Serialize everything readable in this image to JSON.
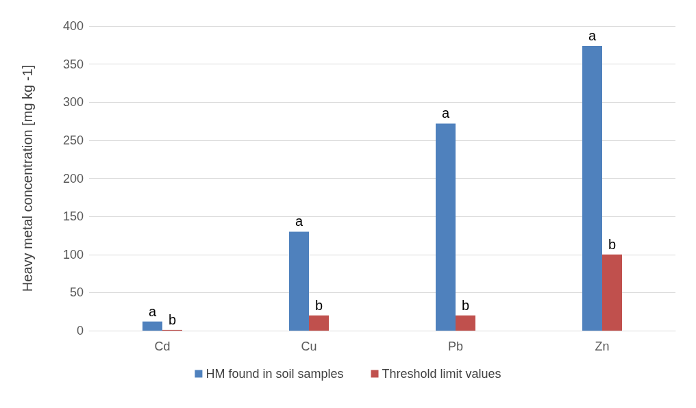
{
  "chart_data": {
    "type": "bar",
    "ylabel": "Heavy metal concentration [mg kg -1]",
    "categories": [
      "Cd",
      "Cu",
      "Pb",
      "Zn"
    ],
    "series": [
      {
        "name": "HM found in soil samples",
        "color": "#4f81bd",
        "values": [
          12,
          130,
          272,
          374
        ],
        "value_labels": [
          "a",
          "a",
          "a",
          "a"
        ]
      },
      {
        "name": "Threshold limit values",
        "color": "#c0504d",
        "values": [
          1,
          20,
          20,
          100
        ],
        "value_labels": [
          "b",
          "b",
          "b",
          "b"
        ]
      }
    ],
    "ylim": [
      0,
      400
    ],
    "yticks": [
      0,
      50,
      100,
      150,
      200,
      250,
      300,
      350,
      400
    ],
    "grid": "y",
    "legend": "bottom"
  }
}
